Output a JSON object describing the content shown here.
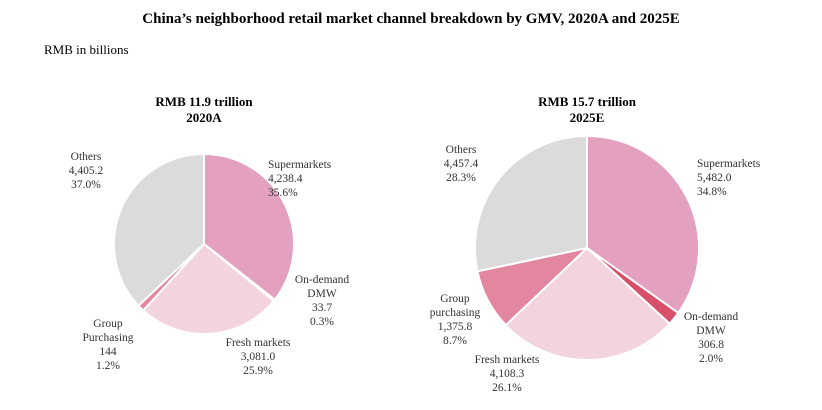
{
  "chart_data": {
    "type": "pie",
    "title": "China’s neighborhood retail market channel breakdown by GMV, 2020A and 2025E",
    "subtitle": "RMB in billions",
    "pies": [
      {
        "heading": "RMB 11.9 trillion",
        "year": "2020A",
        "slices": [
          {
            "label": "Supermarkets",
            "value": 4238.4,
            "value_text": "4,238.4",
            "percent": "35.6%",
            "color": "#e3a0bf"
          },
          {
            "label": "On-demand DMW",
            "value": 33.7,
            "value_text": "33.7",
            "percent": "0.3%",
            "color": "#d74f68"
          },
          {
            "label": "Fresh markets",
            "value": 3081.0,
            "value_text": "3,081.0",
            "percent": "25.9%",
            "color": "#f3d3de"
          },
          {
            "label": "Group Purchasing",
            "value": 144,
            "value_text": "144",
            "percent": "1.2%",
            "color": "#e2879f"
          },
          {
            "label": "Others",
            "value": 4405.2,
            "value_text": "4,405.2",
            "percent": "37.0%",
            "color": "#dbdbdb"
          }
        ]
      },
      {
        "heading": "RMB 15.7 trillion",
        "year": "2025E",
        "slices": [
          {
            "label": "Supermarkets",
            "value": 5482.0,
            "value_text": "5,482.0",
            "percent": "34.8%",
            "color": "#e3a0bf"
          },
          {
            "label": "On-demand DMW",
            "value": 306.8,
            "value_text": "306.8",
            "percent": "2.0%",
            "color": "#d74f68"
          },
          {
            "label": "Fresh markets",
            "value": 4108.3,
            "value_text": "4,108.3",
            "percent": "26.1%",
            "color": "#f3d3de"
          },
          {
            "label": "Group purchasing",
            "value": 1375.8,
            "value_text": "1,375.8",
            "percent": "8.7%",
            "color": "#e2879f"
          },
          {
            "label": "Others",
            "value": 4457.4,
            "value_text": "4,457.4",
            "percent": "28.3%",
            "color": "#dbdbdb"
          }
        ]
      }
    ]
  }
}
